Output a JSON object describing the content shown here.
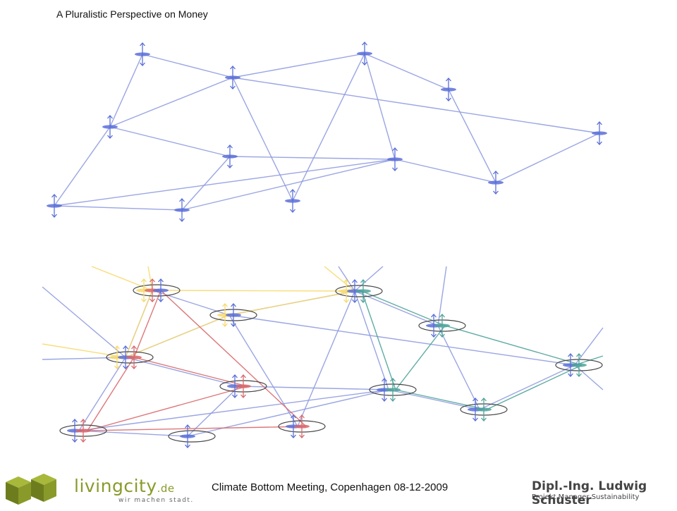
{
  "slide": {
    "title": "A Pluralistic Perspective on Money"
  },
  "footer": {
    "caption": "Climate Bottom Meeting, Copenhagen 08-12-2009",
    "brand_name": "livingcity",
    "brand_tld": ".de",
    "brand_tagline": "wir machen stadt.",
    "author_name": "Dipl.-Ing. Ludwig Schuster",
    "author_role": "Projekt Manager Sustainability"
  },
  "colors": {
    "blue": "#8f9be0",
    "node_blue": "#5a6fd8",
    "yellow": "#f7d96b",
    "red": "#d9686c",
    "teal": "#4fa39a",
    "ring": "#444444",
    "logo_green": "#8a9a2a"
  }
}
